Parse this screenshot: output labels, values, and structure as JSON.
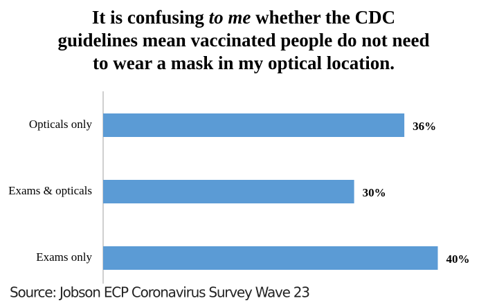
{
  "chart_data": {
    "type": "hbar",
    "title": [
      "It is confusing",
      "to me",
      "whether the CDC",
      "guidelines mean vaccinated people do not need",
      "to wear a mask in my optical location."
    ],
    "categories": [
      "Opticals only",
      "Exams & opticals",
      "Exams only"
    ],
    "values": [
      36,
      30,
      40
    ],
    "value_labels": [
      "36%",
      "30%",
      "40%"
    ],
    "color": "#5b9bd5",
    "xlim": [
      0,
      46
    ],
    "source": "Source: Jobson ECP Coronavirus Survey Wave 23"
  }
}
